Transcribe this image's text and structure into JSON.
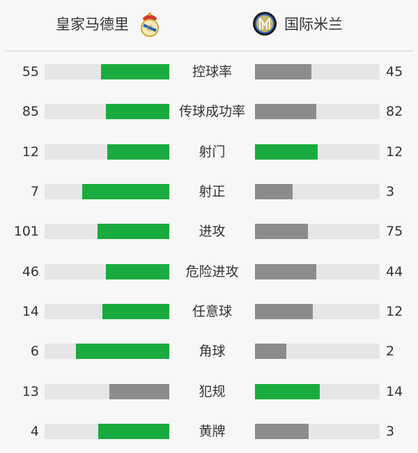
{
  "home": {
    "name": "皇家马德里",
    "logo": "real-madrid-crest"
  },
  "away": {
    "name": "国际米兰",
    "logo": "inter-milan-crest"
  },
  "colors": {
    "leading": "#1aab40",
    "trailing": "#8c8c8c",
    "track": "#e6e6e6"
  },
  "stats": [
    {
      "label": "控球率",
      "home": 55,
      "away": 45
    },
    {
      "label": "传球成功率",
      "home": 85,
      "away": 82
    },
    {
      "label": "射门",
      "home": 12,
      "away": 12
    },
    {
      "label": "射正",
      "home": 7,
      "away": 3
    },
    {
      "label": "进攻",
      "home": 101,
      "away": 75
    },
    {
      "label": "危险进攻",
      "home": 46,
      "away": 44
    },
    {
      "label": "任意球",
      "home": 14,
      "away": 12
    },
    {
      "label": "角球",
      "home": 6,
      "away": 2
    },
    {
      "label": "犯规",
      "home": 13,
      "away": 14
    },
    {
      "label": "黄牌",
      "home": 4,
      "away": 3
    }
  ]
}
